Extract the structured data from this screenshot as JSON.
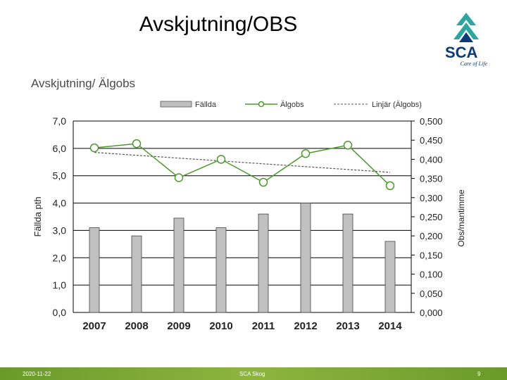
{
  "slide": {
    "title": "Avskjutning/OBS",
    "logo": {
      "text": "SCA",
      "tagline": "Care of Life"
    },
    "footer": {
      "date": "2020-11-22",
      "center": "SCA Skog",
      "page": "9"
    }
  },
  "colors": {
    "bar_fill": "#c0c0c0",
    "line": "#4a9a2a",
    "marker_fill": "#ffffff",
    "trend": "#555555",
    "logo_teal": "#2aa8a0",
    "logo_navy": "#0a3a7a",
    "footer_green": "#7aa534"
  },
  "chart_data": {
    "type": "bar",
    "title": "Avskjutning/ Älgobs",
    "categories": [
      "2007",
      "2008",
      "2009",
      "2010",
      "2011",
      "2012",
      "2013",
      "2014"
    ],
    "series": [
      {
        "name": "Fällda",
        "type": "bar",
        "axis": "left",
        "values": [
          3.1,
          2.8,
          3.45,
          3.1,
          3.6,
          4.0,
          3.6,
          2.6
        ]
      },
      {
        "name": "Älgobs",
        "type": "line",
        "axis": "right",
        "values": [
          0.43,
          0.441,
          0.352,
          0.4,
          0.34,
          0.415,
          0.437,
          0.331
        ]
      },
      {
        "name": "Linjär (Älgobs)",
        "type": "trendline",
        "axis": "right",
        "values": [
          0.418,
          0.41,
          0.403,
          0.396,
          0.388,
          0.381,
          0.374,
          0.366
        ]
      }
    ],
    "y_left": {
      "label": "Fällda pth",
      "ylim": [
        0,
        7
      ],
      "ticks": [
        "0,0",
        "1,0",
        "2,0",
        "3,0",
        "4,0",
        "5,0",
        "6,0",
        "7,0"
      ]
    },
    "y_right": {
      "label": "Obs/mantimme",
      "ylim": [
        0,
        0.5
      ],
      "ticks": [
        "0,000",
        "0,050",
        "0,100",
        "0,150",
        "0,200",
        "0,250",
        "0,300",
        "0,350",
        "0,400",
        "0,450",
        "0,500"
      ]
    },
    "grid": true,
    "legend": "top"
  }
}
